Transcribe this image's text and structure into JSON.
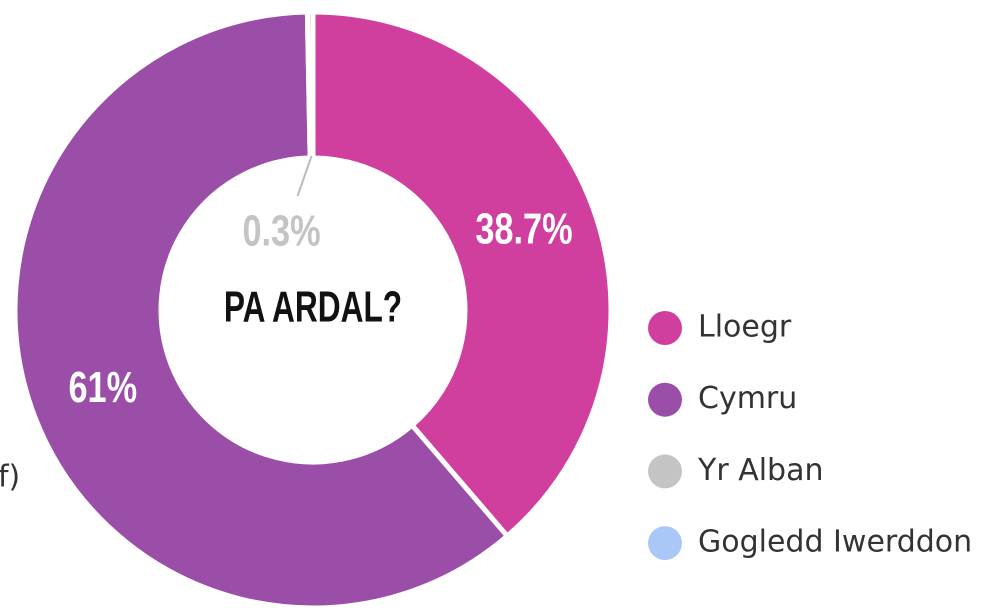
{
  "chart_data": {
    "type": "donut",
    "center_label": "PA ARDAL?",
    "cropped_text": "f)",
    "categories": [
      "Lloegr",
      "Cymru",
      "Yr Alban",
      "Gogledd Iwerddon"
    ],
    "values": [
      38.7,
      61,
      0.3,
      0
    ],
    "value_labels": [
      "38.7%",
      "61%",
      "0.3%",
      null
    ],
    "colors": [
      "#d13f9e",
      "#9b4ea8",
      "#c4c4c4",
      "#a9c8f7"
    ],
    "legend": "right"
  }
}
